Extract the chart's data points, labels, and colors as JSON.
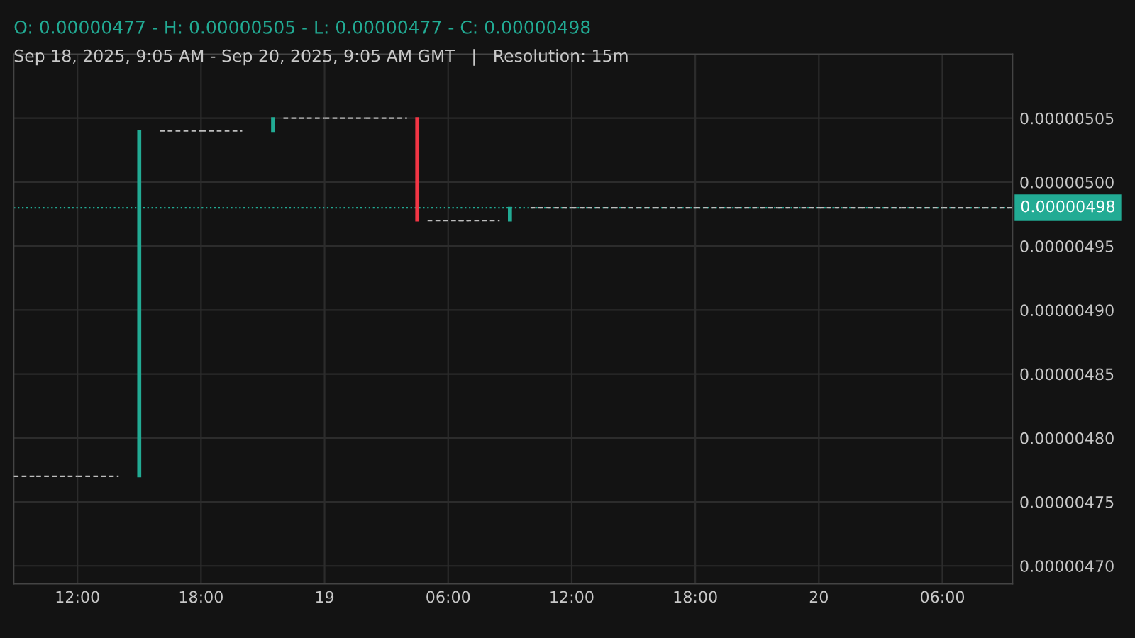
{
  "chart_data": {
    "type": "candlestick",
    "title": "O: 0.00000477 - H: 0.00000505 - L: 0.00000477 - C: 0.00000498",
    "subtitle": "Sep 18, 2025, 9:05 AM - Sep 20, 2025, 9:05 AM GMT   |   Resolution: 15m",
    "x": [
      "2025-09-18T09:00",
      "2025-09-18T11:00",
      "2025-09-18T13:00",
      "2025-09-18T15:00",
      "2025-09-18T17:00",
      "2025-09-18T19:00",
      "2025-09-18T21:30",
      "2025-09-18T23:00",
      "2025-09-19T01:00",
      "2025-09-19T03:00",
      "2025-09-19T04:30",
      "2025-09-19T06:00",
      "2025-09-19T07:30",
      "2025-09-19T09:00",
      "2025-09-19T11:00",
      "2025-09-19T13:00",
      "2025-09-19T15:00",
      "2025-09-19T17:00",
      "2025-09-19T19:00",
      "2025-09-19T21:00",
      "2025-09-19T23:00",
      "2025-09-20T01:00",
      "2025-09-20T03:00",
      "2025-09-20T05:00",
      "2025-09-20T07:00",
      "2025-09-20T09:00"
    ],
    "ohlc": [
      [
        4.77e-06,
        4.77e-06,
        4.77e-06,
        4.77e-06
      ],
      [
        4.77e-06,
        4.77e-06,
        4.77e-06,
        4.77e-06
      ],
      [
        4.77e-06,
        4.77e-06,
        4.77e-06,
        4.77e-06
      ],
      [
        4.77e-06,
        5.04e-06,
        4.77e-06,
        5.04e-06
      ],
      [
        5.04e-06,
        5.04e-06,
        5.04e-06,
        5.04e-06
      ],
      [
        5.04e-06,
        5.04e-06,
        5.04e-06,
        5.04e-06
      ],
      [
        5.04e-06,
        5.05e-06,
        5.04e-06,
        5.05e-06
      ],
      [
        5.05e-06,
        5.05e-06,
        5.05e-06,
        5.05e-06
      ],
      [
        5.05e-06,
        5.05e-06,
        5.05e-06,
        5.05e-06
      ],
      [
        5.05e-06,
        5.05e-06,
        5.05e-06,
        5.05e-06
      ],
      [
        5.05e-06,
        5.05e-06,
        4.97e-06,
        4.97e-06
      ],
      [
        4.97e-06,
        4.97e-06,
        4.97e-06,
        4.97e-06
      ],
      [
        4.97e-06,
        4.97e-06,
        4.97e-06,
        4.97e-06
      ],
      [
        4.97e-06,
        4.98e-06,
        4.97e-06,
        4.98e-06
      ],
      [
        4.98e-06,
        4.98e-06,
        4.98e-06,
        4.98e-06
      ],
      [
        4.98e-06,
        4.98e-06,
        4.98e-06,
        4.98e-06
      ],
      [
        4.98e-06,
        4.98e-06,
        4.98e-06,
        4.98e-06
      ],
      [
        4.98e-06,
        4.98e-06,
        4.98e-06,
        4.98e-06
      ],
      [
        4.98e-06,
        4.98e-06,
        4.98e-06,
        4.98e-06
      ],
      [
        4.98e-06,
        4.98e-06,
        4.98e-06,
        4.98e-06
      ],
      [
        4.98e-06,
        4.98e-06,
        4.98e-06,
        4.98e-06
      ],
      [
        4.98e-06,
        4.98e-06,
        4.98e-06,
        4.98e-06
      ],
      [
        4.98e-06,
        4.98e-06,
        4.98e-06,
        4.98e-06
      ],
      [
        4.98e-06,
        4.98e-06,
        4.98e-06,
        4.98e-06
      ],
      [
        4.98e-06,
        4.98e-06,
        4.98e-06,
        4.98e-06
      ],
      [
        4.98e-06,
        4.98e-06,
        4.98e-06,
        4.98e-06
      ]
    ],
    "colors": [
      "#bdbdbd",
      "#bdbdbd",
      "#bdbdbd",
      "#22ab94",
      "#bdbdbd",
      "#bdbdbd",
      "#22ab94",
      "#bdbdbd",
      "#bdbdbd",
      "#bdbdbd",
      "#f23645",
      "#bdbdbd",
      "#bdbdbd",
      "#22ab94",
      "#bdbdbd",
      "#bdbdbd",
      "#bdbdbd",
      "#bdbdbd",
      "#bdbdbd",
      "#bdbdbd",
      "#bdbdbd",
      "#bdbdbd",
      "#bdbdbd",
      "#bdbdbd",
      "#bdbdbd",
      "#bdbdbd"
    ],
    "xlim": [
      "2025-09-18T08:54",
      "2025-09-20T09:24"
    ],
    "xticks": [
      {
        "value": "2025-09-18T12:00",
        "label": "12:00"
      },
      {
        "value": "2025-09-18T18:00",
        "label": "18:00"
      },
      {
        "value": "2025-09-19T00:00",
        "label": "19"
      },
      {
        "value": "2025-09-19T06:00",
        "label": "06:00"
      },
      {
        "value": "2025-09-19T12:00",
        "label": "12:00"
      },
      {
        "value": "2025-09-19T18:00",
        "label": "18:00"
      },
      {
        "value": "2025-09-20T00:00",
        "label": "20"
      },
      {
        "value": "2025-09-20T06:00",
        "label": "06:00"
      }
    ],
    "ylim": [
      4.686e-06,
      5.1e-06
    ],
    "yticks": [
      {
        "value": 4.7e-06,
        "label": "0.00000470"
      },
      {
        "value": 4.75e-06,
        "label": "0.00000475"
      },
      {
        "value": 4.8e-06,
        "label": "0.00000480"
      },
      {
        "value": 4.85e-06,
        "label": "0.00000485"
      },
      {
        "value": 4.9e-06,
        "label": "0.00000490"
      },
      {
        "value": 4.95e-06,
        "label": "0.00000495"
      },
      {
        "value": 5e-06,
        "label": "0.00000500"
      },
      {
        "value": 5.05e-06,
        "label": "0.00000505"
      }
    ],
    "ref_lines": [
      {
        "axis": "y",
        "value": 4.98e-06,
        "label": "0.00000498",
        "color": "#22ab94",
        "line_style": "dotted"
      }
    ],
    "grid": true,
    "legend": false
  }
}
